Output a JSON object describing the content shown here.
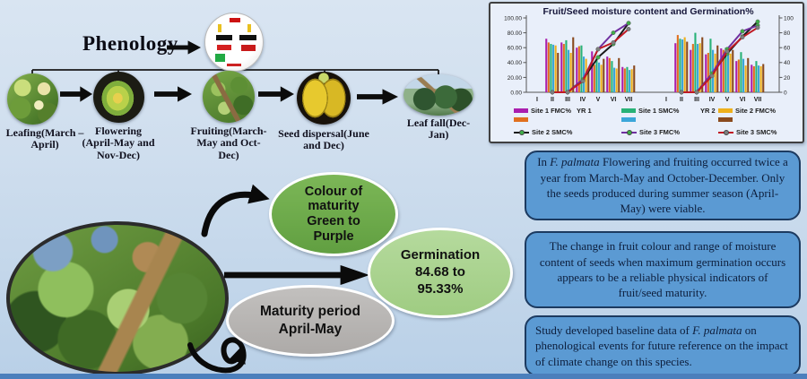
{
  "colors": {
    "background_top": "#d9e5f2",
    "background_bottom": "#b9d0e7",
    "footer_bar": "#4b7fbc",
    "finding_box_fill": "#5b9ad3",
    "finding_box_border": "#1c3a60",
    "colour_ellipse_fill": "#6fae4b",
    "germination_ellipse_fill": "#a9d18e",
    "maturity_ellipse_fill": "#b5b2b0"
  },
  "phenology": {
    "title": "Phenology",
    "stages": [
      {
        "name": "leafing",
        "label": "Leafing(March –\nApril)"
      },
      {
        "name": "flowering",
        "label": "Flowering\n(April-May and\nNov-Dec)"
      },
      {
        "name": "fruiting",
        "label": "Fruiting(March-\nMay  and Oct-\nDec)"
      },
      {
        "name": "seed-dispersal",
        "label": "Seed dispersal(June\nand Dec)"
      },
      {
        "name": "leaf-fall",
        "label": "Leaf fall(Dec-\nJan)"
      }
    ]
  },
  "results": {
    "colour_ellipse": "Colour of\nmaturity\nGreen to\nPurple",
    "germination_ellipse": "Germination\n84.68 to\n95.33%",
    "maturity_ellipse": "Maturity  period\nApril-May"
  },
  "findings": [
    {
      "pre": "In ",
      "species": "F. palmata",
      "post": " Flowering and fruiting occurred twice a year from March-May and October-December. Only the seeds produced during summer season (April-May) were viable."
    },
    {
      "pre": "",
      "species": "",
      "post": "The change in fruit colour and range of moisture content of seeds when maximum germination occurs appears to be a reliable physical indicators of fruit/seed maturity."
    },
    {
      "pre": "Study developed baseline data of ",
      "species": "F. palmata",
      "post": " on phenological events for future reference on the impact of climate change on this species."
    }
  ],
  "chart_data": {
    "type": "bar",
    "title": "Fruit/Seed moisture content and Germination%",
    "categories": [
      "I",
      "II",
      "III",
      "IV",
      "V",
      "VI",
      "VII"
    ],
    "group_labels": [
      "YR 1",
      "YR 2"
    ],
    "y_axis_left_ticks": [
      "100.00",
      "80.00",
      "60.00",
      "40.00",
      "20.00",
      "0.00"
    ],
    "y_axis_right_ticks": [
      "100",
      "80",
      "60",
      "40",
      "20",
      "0"
    ],
    "ylim": [
      0,
      100
    ],
    "legend_position": "bottom",
    "bar_series": [
      {
        "name": "Site 1 FMC%",
        "color": "#aa1fae",
        "yr1": [
          0,
          72,
          67,
          60,
          55,
          48,
          34
        ],
        "yr2": [
          0,
          66,
          57,
          51,
          59,
          42,
          37
        ]
      },
      {
        "name": "",
        "color": "#e0701e",
        "yr1": [
          0,
          67,
          65,
          62,
          37,
          46,
          32
        ],
        "yr2": [
          0,
          77,
          65,
          53,
          57,
          44,
          35
        ]
      },
      {
        "name": "Site 1 SMC%",
        "color": "#28b277",
        "yr1": [
          0,
          65,
          70,
          63,
          47,
          42,
          34
        ],
        "yr2": [
          0,
          72,
          80,
          72,
          60,
          54,
          42
        ]
      },
      {
        "name": "",
        "color": "#3ba6d9",
        "yr1": [
          0,
          64,
          57,
          48,
          40,
          33,
          30
        ],
        "yr2": [
          0,
          71,
          65,
          57,
          57,
          45,
          36
        ]
      },
      {
        "name": "Site 2 FMC%",
        "color": "#eeb01c",
        "yr1": [
          0,
          63,
          53,
          45,
          37,
          32,
          31
        ],
        "yr2": [
          0,
          74,
          66,
          52,
          52,
          36,
          35
        ]
      },
      {
        "name": "",
        "color": "#8a4a1e",
        "yr1": [
          0,
          53,
          74,
          30,
          45,
          46,
          36
        ],
        "yr2": [
          0,
          68,
          74,
          63,
          57,
          46,
          38
        ]
      }
    ],
    "line_series": [
      {
        "name": "Site 2 SMC%",
        "color": "#1a1a1a",
        "marker": "#3fae49",
        "yr1": [
          null,
          0,
          0,
          17,
          47,
          65,
          93
        ],
        "yr2": [
          null,
          0,
          0,
          25,
          52,
          75,
          95
        ]
      },
      {
        "name": "Site 3 FMC%",
        "color": "#7030a0",
        "marker": "#3fae49",
        "yr1": [
          null,
          0,
          0,
          17,
          58,
          80,
          93
        ],
        "yr2": [
          null,
          0,
          0,
          25,
          58,
          82,
          90
        ]
      },
      {
        "name": "Site 3 SMC%",
        "color": "#c01a24",
        "marker": "#7f7f7f",
        "yr1": [
          null,
          0,
          0,
          15,
          58,
          67,
          85
        ],
        "yr2": [
          null,
          0,
          0,
          22,
          55,
          74,
          87
        ]
      }
    ]
  }
}
